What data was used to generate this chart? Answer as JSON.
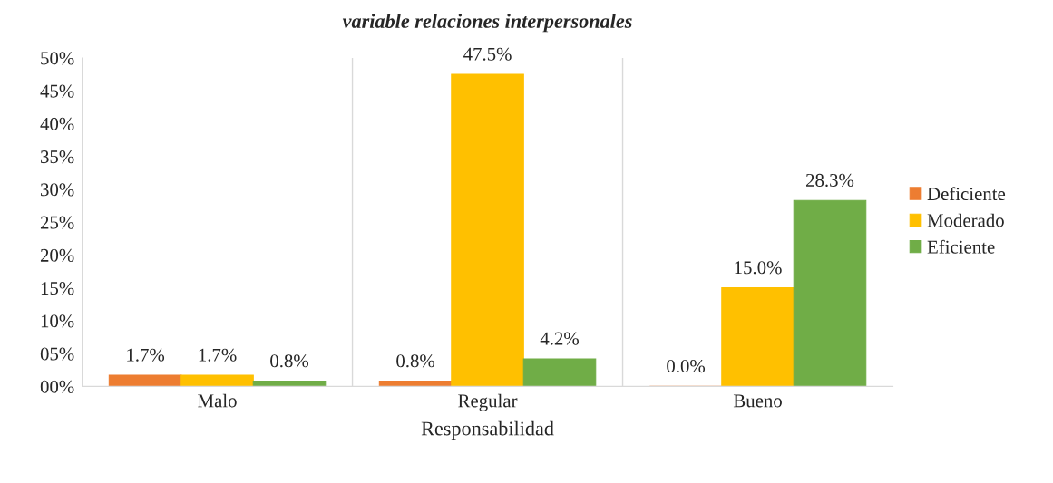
{
  "chart_data": {
    "type": "bar",
    "title": "variable relaciones interpersonales",
    "xlabel": "Responsabilidad",
    "categories": [
      "Malo",
      "Regular",
      "Bueno"
    ],
    "series": [
      {
        "name": "Deficiente",
        "color": "#ed7d31",
        "values": [
          1.7,
          0.8,
          0.0
        ],
        "value_labels": [
          "1.7%",
          "0.8%",
          "0.0%"
        ]
      },
      {
        "name": "Moderado",
        "color": "#ffc000",
        "values": [
          1.7,
          47.5,
          15.0
        ],
        "value_labels": [
          "1.7%",
          "47.5%",
          "15.0%"
        ]
      },
      {
        "name": "Eficiente",
        "color": "#70ad47",
        "values": [
          0.8,
          4.2,
          28.3
        ],
        "value_labels": [
          "0.8%",
          "4.2%",
          "28.3%"
        ]
      }
    ],
    "ylim": [
      0,
      50
    ],
    "yticks": [
      {
        "value": 0,
        "label": "00%"
      },
      {
        "value": 5,
        "label": "05%"
      },
      {
        "value": 10,
        "label": "10%"
      },
      {
        "value": 15,
        "label": "15%"
      },
      {
        "value": 20,
        "label": "20%"
      },
      {
        "value": 25,
        "label": "25%"
      },
      {
        "value": 30,
        "label": "30%"
      },
      {
        "value": 35,
        "label": "35%"
      },
      {
        "value": 40,
        "label": "40%"
      },
      {
        "value": 45,
        "label": "45%"
      },
      {
        "value": 50,
        "label": "50%"
      }
    ],
    "grid": "x",
    "legend": "right"
  }
}
